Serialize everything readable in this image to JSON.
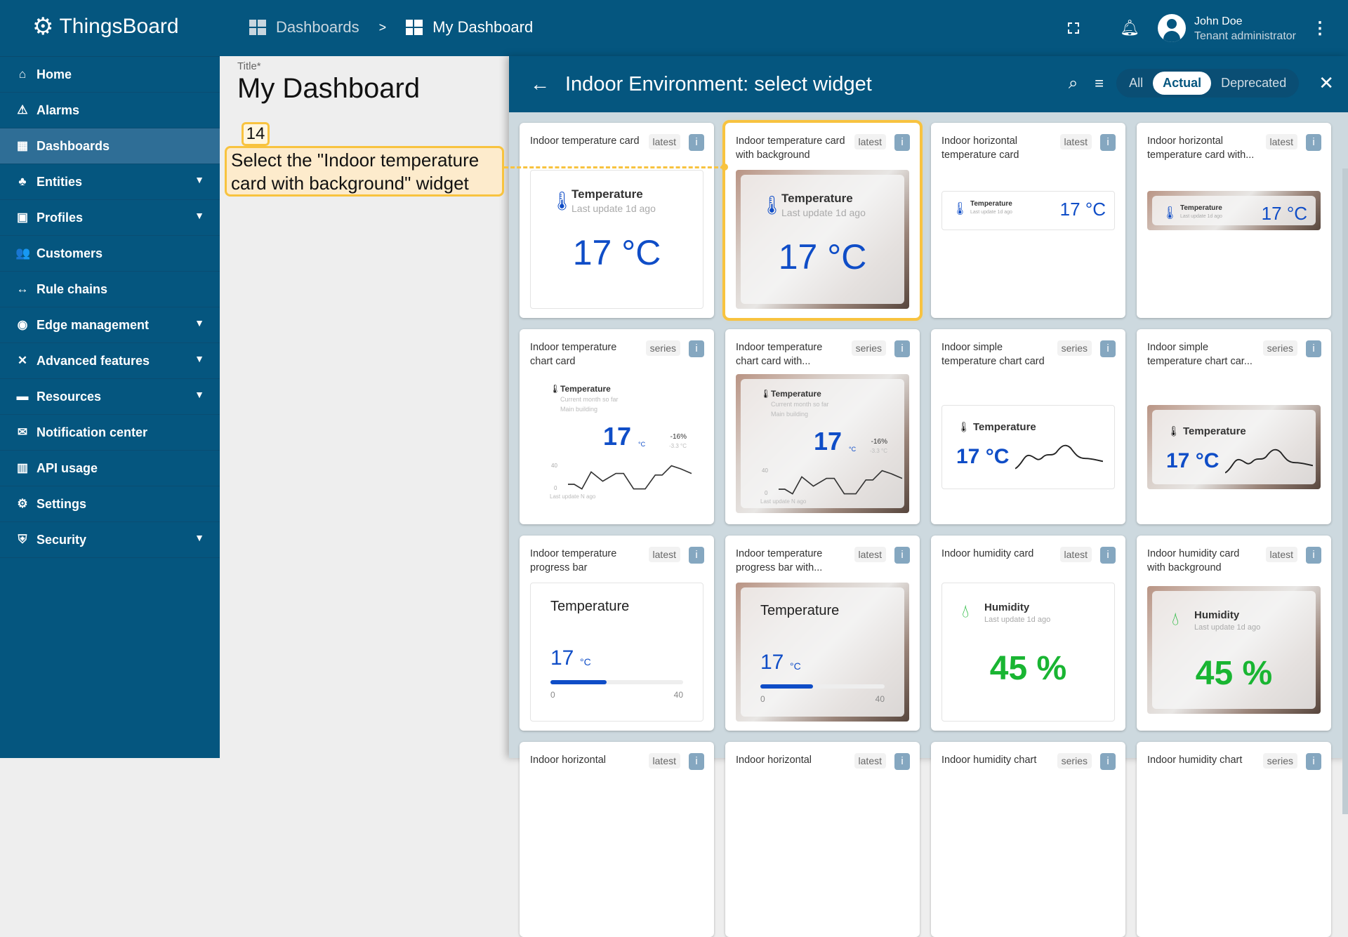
{
  "app": {
    "name": "ThingsBoard"
  },
  "breadcrumb": [
    {
      "label": "Dashboards"
    },
    {
      "label": "My Dashboard"
    }
  ],
  "breadcrumb_sep": ">",
  "user": {
    "name": "John Doe",
    "role": "Tenant administrator"
  },
  "sidebar": {
    "items": [
      {
        "label": "Home",
        "icon": "home-icon",
        "glyph": "⌂"
      },
      {
        "label": "Alarms",
        "icon": "alarm-icon",
        "glyph": "⚠"
      },
      {
        "label": "Dashboards",
        "icon": "dashboard-icon",
        "glyph": "▦",
        "active": true
      },
      {
        "label": "Entities",
        "icon": "entities-icon",
        "glyph": "♣",
        "expand": true
      },
      {
        "label": "Profiles",
        "icon": "profiles-icon",
        "glyph": "▣",
        "expand": true
      },
      {
        "label": "Customers",
        "icon": "customers-icon",
        "glyph": "👥"
      },
      {
        "label": "Rule chains",
        "icon": "rule-chains-icon",
        "glyph": "↔"
      },
      {
        "label": "Edge management",
        "icon": "edge-icon",
        "glyph": "◉",
        "expand": true
      },
      {
        "label": "Advanced features",
        "icon": "tools-icon",
        "glyph": "✕",
        "expand": true
      },
      {
        "label": "Resources",
        "icon": "folder-icon",
        "glyph": "▬",
        "expand": true
      },
      {
        "label": "Notification center",
        "icon": "notification-icon",
        "glyph": "✉"
      },
      {
        "label": "API usage",
        "icon": "api-usage-icon",
        "glyph": "▥"
      },
      {
        "label": "Settings",
        "icon": "settings-icon",
        "glyph": "⚙"
      },
      {
        "label": "Security",
        "icon": "security-icon",
        "glyph": "⛨",
        "expand": true
      }
    ]
  },
  "title_panel": {
    "label": "Title*",
    "value": "My Dashboard"
  },
  "dialog": {
    "title": "Indoor Environment: select widget",
    "filters": [
      "All",
      "Actual",
      "Deprecated"
    ],
    "active_filter": "Actual"
  },
  "callout": {
    "step": "14",
    "text": "Select the \"Indoor temperature card with background\" widget"
  },
  "colors": {
    "header": "#05567f",
    "accent_blue": "#0f4dc7",
    "humidity_green": "#19b532",
    "highlight": "#f8c33f"
  },
  "cards": [
    {
      "title": "Indoor temperature card",
      "tag": "latest",
      "type": "value",
      "bg": false,
      "label": "Temperature",
      "sub": "Last update 1d ago",
      "value": "17 °C"
    },
    {
      "title": "Indoor temperature card with background",
      "tag": "latest",
      "type": "value",
      "bg": true,
      "selected": true,
      "label": "Temperature",
      "sub": "Last update 1d ago",
      "value": "17 °C"
    },
    {
      "title": "Indoor horizontal temperature card",
      "tag": "latest",
      "type": "horizontal",
      "bg": false,
      "label": "Temperature",
      "sub": "Last update 1d ago",
      "value": "17 °C"
    },
    {
      "title": "Indoor horizontal temperature card with...",
      "tag": "latest",
      "type": "horizontal",
      "bg": true,
      "label": "Temperature",
      "sub": "Last update 1d ago",
      "value": "17 °C"
    },
    {
      "title": "Indoor temperature chart card",
      "tag": "series",
      "type": "chart",
      "bg": false,
      "label": "Temperature",
      "sub": "Current month so far",
      "sub2": "Main building",
      "value": "17",
      "unit": "°C",
      "delta": "-16%",
      "delta2": "-3.3 °C",
      "ymax": "40",
      "ymin": "0",
      "foot": "Last update N ago"
    },
    {
      "title": "Indoor temperature chart card with...",
      "tag": "series",
      "type": "chart",
      "bg": true,
      "label": "Temperature",
      "sub": "Current month so far",
      "sub2": "Main building",
      "value": "17",
      "unit": "°C",
      "delta": "-16%",
      "delta2": "-3.3 °C",
      "ymax": "40",
      "ymin": "0",
      "foot": "Last update N ago"
    },
    {
      "title": "Indoor simple temperature chart card",
      "tag": "series",
      "type": "simple",
      "bg": false,
      "label": "Temperature",
      "value": "17 °C"
    },
    {
      "title": "Indoor simple temperature chart car...",
      "tag": "series",
      "type": "simple",
      "bg": true,
      "label": "Temperature",
      "value": "17 °C"
    },
    {
      "title": "Indoor temperature progress bar",
      "tag": "latest",
      "type": "progress",
      "bg": false,
      "label": "Temperature",
      "value": "17",
      "unit": "°C",
      "min": "0",
      "max": "40",
      "progress": 0.425
    },
    {
      "title": "Indoor temperature progress bar with...",
      "tag": "latest",
      "type": "progress",
      "bg": true,
      "label": "Temperature",
      "value": "17",
      "unit": "°C",
      "min": "0",
      "max": "40",
      "progress": 0.425
    },
    {
      "title": "Indoor humidity card",
      "tag": "latest",
      "type": "humidity",
      "bg": false,
      "label": "Humidity",
      "sub": "Last update 1d ago",
      "value": "45 %"
    },
    {
      "title": "Indoor humidity card with background",
      "tag": "latest",
      "type": "humidity",
      "bg": true,
      "label": "Humidity",
      "sub": "Last update 1d ago",
      "value": "45 %"
    },
    {
      "title": "Indoor horizontal",
      "tag": "latest",
      "type": "none"
    },
    {
      "title": "Indoor horizontal",
      "tag": "latest",
      "type": "none"
    },
    {
      "title": "Indoor humidity chart",
      "tag": "series",
      "type": "none"
    },
    {
      "title": "Indoor humidity chart",
      "tag": "series",
      "type": "none"
    }
  ]
}
